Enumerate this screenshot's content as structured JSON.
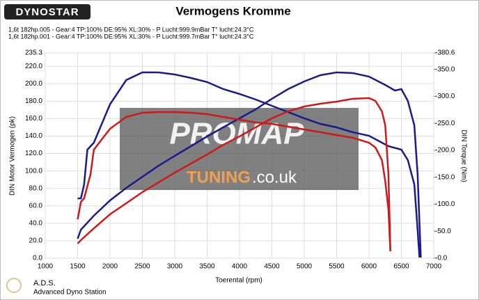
{
  "chart_data": {
    "type": "line",
    "logo": "DYNOSTAR",
    "title": "Vermogens Kromme",
    "run_labels": [
      {
        "text": "1,6t 182hp.005 - Gear:4 TP:100% DE:95% XL:30%   - P Lucht:999.9mBar T° lucht:24.3°C",
        "color": "#1a1a8c"
      },
      {
        "text": "1,6t 182hp.001 - Gear:4 TP:100% DE:95% XL:30%   - P Lucht:999.7mBar T° lucht:24.3°C",
        "color": "#cc1a1a"
      }
    ],
    "x_label": "Toerental (rpm)",
    "y_label": "DIN Motor Vermogen (pk)",
    "y2_label": "DIN Torque (Nm)",
    "xlim": [
      1000,
      7000
    ],
    "xticks": [
      1000,
      1500,
      2000,
      2500,
      3000,
      3500,
      4000,
      4500,
      5000,
      5500,
      6000,
      6500,
      7000
    ],
    "ylim": [
      0,
      235.3
    ],
    "yticks": [
      {
        "value": 0,
        "label": "0.0"
      },
      {
        "value": 20,
        "label": "20.0"
      },
      {
        "value": 40,
        "label": "40.0"
      },
      {
        "value": 60,
        "label": "60.0"
      },
      {
        "value": 80,
        "label": "80.0"
      },
      {
        "value": 100,
        "label": "100.0"
      },
      {
        "value": 120,
        "label": "120.0"
      },
      {
        "value": 140,
        "label": "140.0"
      },
      {
        "value": 160,
        "label": "160.0"
      },
      {
        "value": 180,
        "label": "180.0"
      },
      {
        "value": 200,
        "label": "200.0"
      },
      {
        "value": 220,
        "label": "220.0"
      },
      235.3
    ],
    "y2lim": [
      0,
      380.6
    ],
    "y2ticks": [
      {
        "value": 0,
        "label": "-0.0"
      },
      {
        "value": 50,
        "label": "-50.0"
      },
      {
        "value": 100,
        "label": "-100.0"
      },
      {
        "value": 150,
        "label": "-150.0"
      },
      {
        "value": 200,
        "label": "-200.0"
      },
      {
        "value": 250,
        "label": "-250.0"
      },
      {
        "value": 300,
        "label": "-300.0"
      },
      {
        "value": 350,
        "label": "-350.0"
      },
      {
        "value": 380.6,
        "label": "-380.6"
      }
    ],
    "grid": true,
    "series": [
      {
        "color": "#1a1a8c",
        "axis": "y",
        "x": [
          1500,
          1550,
          1750,
          2000,
          2250,
          2500,
          2750,
          3000,
          3250,
          3500,
          3750,
          4000,
          4250,
          4500,
          4750,
          5000,
          5250,
          5500,
          5750,
          6000,
          6250,
          6400,
          6500,
          6600,
          6700,
          6750,
          6800
        ],
        "values": [
          22.3,
          32.7,
          48.7,
          66.2,
          80.6,
          93.3,
          106.1,
          117.3,
          128.4,
          139.6,
          150.0,
          160.3,
          170.7,
          182.7,
          193.8,
          202.6,
          209.8,
          213.0,
          212.2,
          208.2,
          198.6,
          192.2,
          193.8,
          180.3,
          152.3,
          96.5,
          0.8
        ]
      },
      {
        "color": "#1a1a8c",
        "axis": "y2",
        "x": [
          1500,
          1550,
          1600,
          1650,
          1750,
          2000,
          2250,
          2500,
          2750,
          3000,
          3250,
          3500,
          3750,
          4000,
          4250,
          4500,
          4750,
          5000,
          5250,
          5500,
          5750,
          6000,
          6200,
          6300,
          6500,
          6600,
          6700,
          6750,
          6780
        ],
        "values": [
          111,
          111,
          136.8,
          201.3,
          214.2,
          285.2,
          330.3,
          344.5,
          344.5,
          340.6,
          334.2,
          326.5,
          313.5,
          304.5,
          294.2,
          282.6,
          271.0,
          259.4,
          249.0,
          242.6,
          233.5,
          227.1,
          214.2,
          207.7,
          201.3,
          181.9,
          136.8,
          52.9,
          1.3
        ]
      },
      {
        "color": "#cc1a1a",
        "axis": "y",
        "x": [
          1500,
          1550,
          1750,
          2000,
          2250,
          2500,
          2750,
          3000,
          3250,
          3500,
          3750,
          4000,
          4250,
          4500,
          4750,
          5000,
          5250,
          5500,
          5750,
          6000,
          6100,
          6200,
          6250,
          6300,
          6330
        ],
        "values": [
          16.8,
          20.7,
          34.3,
          50.3,
          63.0,
          75.8,
          86.9,
          98.1,
          108.5,
          118.9,
          130.0,
          139.6,
          150.0,
          160.3,
          168.3,
          173.9,
          177.1,
          179.5,
          182.7,
          183.5,
          180.3,
          168.3,
          152.3,
          96.5,
          8.8
        ]
      },
      {
        "color": "#cc1a1a",
        "axis": "y2",
        "x": [
          1500,
          1550,
          1600,
          1700,
          1750,
          2000,
          2250,
          2500,
          2750,
          3000,
          3250,
          3500,
          3750,
          4000,
          4250,
          4500,
          4750,
          5000,
          5250,
          5500,
          5750,
          6000,
          6100,
          6200,
          6250,
          6300,
          6330
        ],
        "values": [
          72.3,
          104.5,
          111.0,
          156.1,
          201.3,
          240.0,
          261.9,
          269.7,
          271.0,
          271.0,
          269.7,
          267.1,
          261.9,
          256.8,
          251.6,
          249.0,
          243.9,
          238.7,
          233.5,
          228.4,
          223.2,
          214.2,
          205.2,
          181.9,
          143.2,
          90.3,
          12.9
        ]
      }
    ],
    "watermark": [
      "PROMAP",
      "TUNING",
      ".co.uk"
    ],
    "footer": [
      "A.D.S.",
      "Advanced Dyno Station"
    ]
  }
}
